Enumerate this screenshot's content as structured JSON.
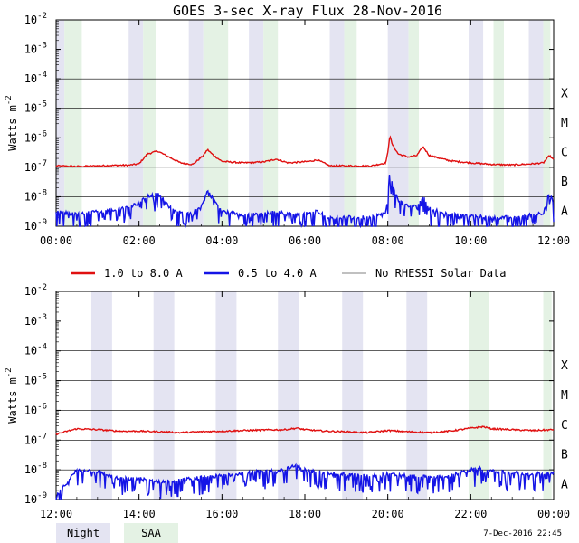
{
  "title": "GOES 3-sec X-ray Flux   28-Nov-2016",
  "footer_timestamp": "7-Dec-2016 22:45",
  "colors": {
    "long": "#e01010",
    "short": "#1414e6",
    "nodata": "#9a9a9a",
    "night": "#e4e4f2",
    "saa": "#e4f2e4"
  },
  "legend": [
    {
      "label": "1.0 to 8.0 A",
      "color": "#e01010"
    },
    {
      "label": "0.5 to 4.0 A",
      "color": "#1414e6"
    },
    {
      "label": "No RHESSI Solar Data",
      "color": "#9a9a9a"
    }
  ],
  "region_legend": {
    "night": "Night",
    "saa": "SAA"
  },
  "chart_data": [
    {
      "type": "line",
      "title": "GOES 3-sec X-ray Flux   28-Nov-2016",
      "ylabel": "Watts m-2",
      "yscale": "log",
      "ylim_exp": [
        -9,
        -2
      ],
      "y_tick_exponents": [
        -9,
        -8,
        -7,
        -6,
        -5,
        -4,
        -3,
        -2
      ],
      "y_tick_labels": [
        "10-9",
        "10-8",
        "10-7",
        "10-6",
        "10-5",
        "10-4",
        "10-3",
        "10-2"
      ],
      "flare_classes": [
        {
          "label": "A",
          "exp": -8
        },
        {
          "label": "B",
          "exp": -7
        },
        {
          "label": "C",
          "exp": -6
        },
        {
          "label": "M",
          "exp": -5
        },
        {
          "label": "X",
          "exp": -4
        }
      ],
      "xlim_h": [
        0,
        12
      ],
      "x_ticks": [
        {
          "h": 0,
          "label": "00:00"
        },
        {
          "h": 2,
          "label": "02:00"
        },
        {
          "h": 4,
          "label": "04:00"
        },
        {
          "h": 6,
          "label": "06:00"
        },
        {
          "h": 8,
          "label": "08:00"
        },
        {
          "h": 10,
          "label": "10:00"
        },
        {
          "h": 12,
          "label": "12:00"
        }
      ],
      "night_bands_h": [
        [
          0.0,
          0.2
        ],
        [
          1.75,
          2.1
        ],
        [
          3.2,
          3.55
        ],
        [
          4.65,
          5.0
        ],
        [
          6.6,
          6.95
        ],
        [
          8.0,
          8.5
        ],
        [
          9.95,
          10.3
        ],
        [
          11.4,
          11.75
        ]
      ],
      "saa_bands_h": [
        [
          0.2,
          0.62
        ],
        [
          2.1,
          2.4
        ],
        [
          3.55,
          4.15
        ],
        [
          5.0,
          5.35
        ],
        [
          6.95,
          7.25
        ],
        [
          8.5,
          8.75
        ],
        [
          10.55,
          10.8
        ],
        [
          11.75,
          11.92
        ]
      ],
      "series": [
        {
          "name": "1.0 to 8.0 A",
          "points_h_exp": [
            [
              0.0,
              -6.95
            ],
            [
              0.5,
              -6.97
            ],
            [
              1.0,
              -6.95
            ],
            [
              1.5,
              -6.93
            ],
            [
              1.75,
              -6.93
            ],
            [
              2.0,
              -6.88
            ],
            [
              2.2,
              -6.55
            ],
            [
              2.45,
              -6.45
            ],
            [
              2.65,
              -6.6
            ],
            [
              3.0,
              -6.85
            ],
            [
              3.3,
              -6.9
            ],
            [
              3.55,
              -6.6
            ],
            [
              3.65,
              -6.4
            ],
            [
              3.8,
              -6.6
            ],
            [
              4.0,
              -6.8
            ],
            [
              4.5,
              -6.85
            ],
            [
              5.0,
              -6.82
            ],
            [
              5.3,
              -6.72
            ],
            [
              5.6,
              -6.85
            ],
            [
              6.1,
              -6.8
            ],
            [
              6.3,
              -6.75
            ],
            [
              6.6,
              -6.95
            ],
            [
              7.0,
              -6.95
            ],
            [
              7.6,
              -6.95
            ],
            [
              7.95,
              -6.85
            ],
            [
              8.0,
              -6.5
            ],
            [
              8.05,
              -5.9
            ],
            [
              8.1,
              -6.2
            ],
            [
              8.25,
              -6.55
            ],
            [
              8.5,
              -6.65
            ],
            [
              8.7,
              -6.6
            ],
            [
              8.85,
              -6.3
            ],
            [
              9.0,
              -6.6
            ],
            [
              9.5,
              -6.78
            ],
            [
              10.0,
              -6.85
            ],
            [
              10.5,
              -6.9
            ],
            [
              11.0,
              -6.92
            ],
            [
              11.5,
              -6.88
            ],
            [
              11.75,
              -6.85
            ],
            [
              11.9,
              -6.6
            ],
            [
              12.0,
              -6.75
            ]
          ]
        },
        {
          "name": "0.5 to 4.0 A",
          "points_h_exp": [
            [
              0.0,
              -8.5
            ],
            [
              0.5,
              -8.6
            ],
            [
              1.0,
              -8.5
            ],
            [
              1.5,
              -8.4
            ],
            [
              1.75,
              -8.35
            ],
            [
              2.0,
              -8.2
            ],
            [
              2.2,
              -8.0
            ],
            [
              2.45,
              -7.9
            ],
            [
              2.65,
              -8.2
            ],
            [
              3.0,
              -8.55
            ],
            [
              3.3,
              -8.6
            ],
            [
              3.55,
              -8.2
            ],
            [
              3.65,
              -7.8
            ],
            [
              3.8,
              -8.1
            ],
            [
              4.0,
              -8.5
            ],
            [
              4.5,
              -8.6
            ],
            [
              5.0,
              -8.6
            ],
            [
              5.3,
              -8.5
            ],
            [
              5.6,
              -8.6
            ],
            [
              6.1,
              -8.55
            ],
            [
              6.3,
              -8.5
            ],
            [
              6.6,
              -8.7
            ],
            [
              7.0,
              -8.7
            ],
            [
              7.6,
              -8.7
            ],
            [
              7.95,
              -8.55
            ],
            [
              8.0,
              -8.1
            ],
            [
              8.05,
              -7.0
            ],
            [
              8.1,
              -7.5
            ],
            [
              8.25,
              -8.1
            ],
            [
              8.5,
              -8.35
            ],
            [
              8.7,
              -8.3
            ],
            [
              8.85,
              -8.0
            ],
            [
              9.0,
              -8.4
            ],
            [
              9.5,
              -8.6
            ],
            [
              10.0,
              -8.65
            ],
            [
              10.5,
              -8.7
            ],
            [
              11.0,
              -8.7
            ],
            [
              11.5,
              -8.6
            ],
            [
              11.75,
              -8.55
            ],
            [
              11.9,
              -7.8
            ],
            [
              12.0,
              -8.3
            ]
          ]
        }
      ]
    },
    {
      "type": "line",
      "ylabel": "Watts m-2",
      "yscale": "log",
      "ylim_exp": [
        -9,
        -2
      ],
      "y_tick_exponents": [
        -9,
        -8,
        -7,
        -6,
        -5,
        -4,
        -3,
        -2
      ],
      "y_tick_labels": [
        "10-9",
        "10-8",
        "10-7",
        "10-6",
        "10-5",
        "10-4",
        "10-3",
        "10-2"
      ],
      "flare_classes": [
        {
          "label": "A",
          "exp": -8
        },
        {
          "label": "B",
          "exp": -7
        },
        {
          "label": "C",
          "exp": -6
        },
        {
          "label": "M",
          "exp": -5
        },
        {
          "label": "X",
          "exp": -4
        }
      ],
      "xlim_h": [
        12,
        24
      ],
      "x_ticks": [
        {
          "h": 12,
          "label": "12:00"
        },
        {
          "h": 14,
          "label": "14:00"
        },
        {
          "h": 16,
          "label": "16:00"
        },
        {
          "h": 18,
          "label": "18:00"
        },
        {
          "h": 20,
          "label": "20:00"
        },
        {
          "h": 22,
          "label": "22:00"
        },
        {
          "h": 24,
          "label": "00:00"
        }
      ],
      "night_bands_h": [
        [
          12.85,
          13.35
        ],
        [
          14.35,
          14.85
        ],
        [
          15.85,
          16.35
        ],
        [
          17.35,
          17.85
        ],
        [
          18.9,
          19.4
        ],
        [
          20.45,
          20.95
        ]
      ],
      "saa_bands_h": [
        [
          21.95,
          22.45
        ],
        [
          23.75,
          23.95
        ]
      ],
      "series": [
        {
          "name": "1.0 to 8.0 A",
          "points_h_exp": [
            [
              12.0,
              -6.8
            ],
            [
              12.5,
              -6.62
            ],
            [
              13.0,
              -6.65
            ],
            [
              13.5,
              -6.7
            ],
            [
              14.0,
              -6.7
            ],
            [
              14.5,
              -6.72
            ],
            [
              15.0,
              -6.75
            ],
            [
              15.5,
              -6.72
            ],
            [
              16.0,
              -6.7
            ],
            [
              16.5,
              -6.68
            ],
            [
              17.0,
              -6.66
            ],
            [
              17.5,
              -6.65
            ],
            [
              17.8,
              -6.6
            ],
            [
              18.0,
              -6.65
            ],
            [
              18.5,
              -6.7
            ],
            [
              19.0,
              -6.72
            ],
            [
              19.5,
              -6.75
            ],
            [
              20.0,
              -6.68
            ],
            [
              20.5,
              -6.72
            ],
            [
              21.0,
              -6.75
            ],
            [
              21.5,
              -6.7
            ],
            [
              22.0,
              -6.6
            ],
            [
              22.3,
              -6.55
            ],
            [
              22.5,
              -6.62
            ],
            [
              23.0,
              -6.65
            ],
            [
              23.5,
              -6.68
            ],
            [
              24.0,
              -6.65
            ]
          ]
        },
        {
          "name": "0.5 to 4.0 A",
          "points_h_exp": [
            [
              12.0,
              -8.9
            ],
            [
              12.5,
              -8.0
            ],
            [
              13.0,
              -8.05
            ],
            [
              13.5,
              -8.3
            ],
            [
              14.0,
              -8.3
            ],
            [
              14.5,
              -8.4
            ],
            [
              15.0,
              -8.35
            ],
            [
              15.5,
              -8.25
            ],
            [
              16.0,
              -8.2
            ],
            [
              16.5,
              -8.1
            ],
            [
              17.0,
              -8.05
            ],
            [
              17.5,
              -8.0
            ],
            [
              17.8,
              -7.85
            ],
            [
              18.0,
              -8.0
            ],
            [
              18.5,
              -8.1
            ],
            [
              19.0,
              -8.15
            ],
            [
              19.5,
              -8.2
            ],
            [
              20.0,
              -8.15
            ],
            [
              20.5,
              -8.2
            ],
            [
              21.0,
              -8.25
            ],
            [
              21.5,
              -8.2
            ],
            [
              22.0,
              -8.0
            ],
            [
              22.3,
              -7.95
            ],
            [
              22.5,
              -8.05
            ],
            [
              23.0,
              -8.1
            ],
            [
              23.5,
              -8.15
            ],
            [
              24.0,
              -8.1
            ]
          ]
        }
      ]
    }
  ]
}
